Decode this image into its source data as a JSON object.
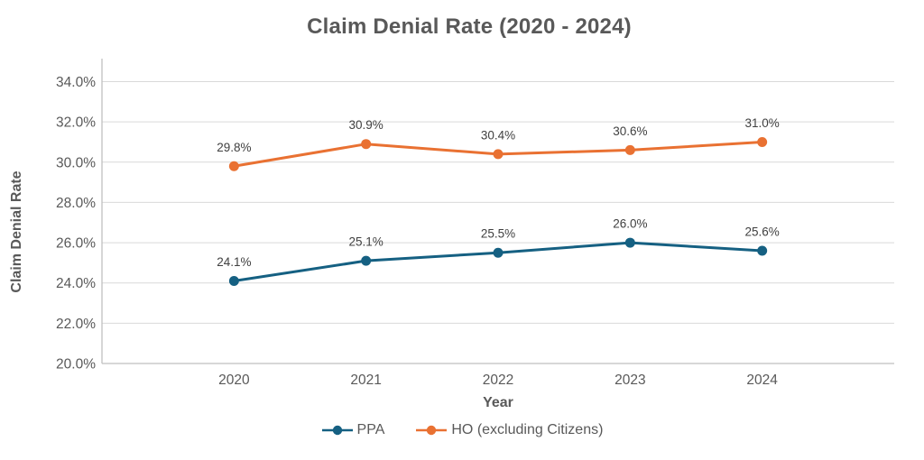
{
  "chart_data": {
    "type": "line",
    "title": "Claim Denial Rate (2020 - 2024)",
    "xlabel": "Year",
    "ylabel": "Claim Denial Rate",
    "categories": [
      "2020",
      "2021",
      "2022",
      "2023",
      "2024"
    ],
    "series": [
      {
        "name": "PPA",
        "color": "#156082",
        "values": [
          24.1,
          25.1,
          25.5,
          26.0,
          25.6
        ],
        "labels": [
          "24.1%",
          "25.1%",
          "25.5%",
          "26.0%",
          "25.6%"
        ]
      },
      {
        "name": "HO (excluding Citizens)",
        "color": "#E97132",
        "values": [
          29.8,
          30.9,
          30.4,
          30.6,
          31.0
        ],
        "labels": [
          "29.8%",
          "30.9%",
          "30.4%",
          "30.6%",
          "31.0%"
        ]
      }
    ],
    "ylim": [
      20,
      34
    ],
    "ytick_step": 2,
    "ytick_labels": [
      "20.0%",
      "22.0%",
      "24.0%",
      "26.0%",
      "28.0%",
      "30.0%",
      "32.0%",
      "34.0%"
    ],
    "grid": "horizontal",
    "legend_position": "bottom",
    "colors": {
      "gridline": "#D9D9D9",
      "axis_line": "#BFBFBF",
      "title_text": "#595959",
      "axis_text": "#595959",
      "data_label_text": "#404040",
      "background": "#FFFFFF"
    }
  }
}
